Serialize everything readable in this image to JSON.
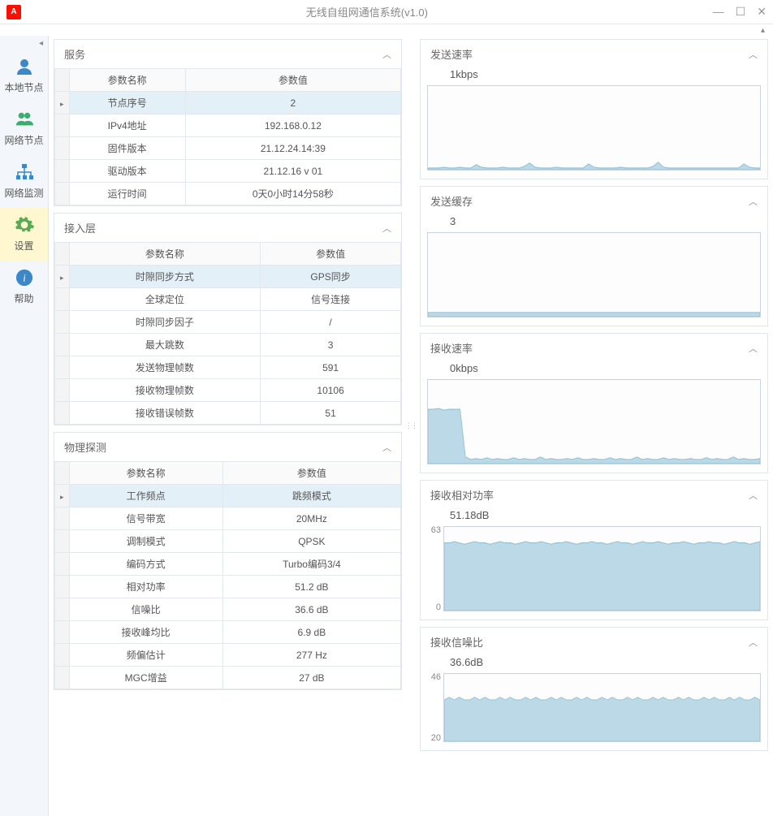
{
  "window": {
    "title": "无线自组网通信系统(v1.0)",
    "logo_text": "A"
  },
  "sidebar": {
    "items": [
      {
        "label": "本地节点"
      },
      {
        "label": "网络节点"
      },
      {
        "label": "网络监测"
      },
      {
        "label": "设置"
      },
      {
        "label": "帮助"
      }
    ]
  },
  "tables": {
    "header_param": "参数名称",
    "header_value": "参数值",
    "service": {
      "title": "服务",
      "rows": [
        {
          "k": "节点序号",
          "v": "2",
          "hl": true
        },
        {
          "k": "IPv4地址",
          "v": "192.168.0.12"
        },
        {
          "k": "固件版本",
          "v": "21.12.24.14:39"
        },
        {
          "k": "驱动版本",
          "v": "21.12.16 v 01"
        },
        {
          "k": "运行时间",
          "v": "0天0小时14分58秒"
        }
      ]
    },
    "access": {
      "title": "接入层",
      "rows": [
        {
          "k": "时隙同步方式",
          "v": "GPS同步",
          "hl": true
        },
        {
          "k": "全球定位",
          "v": "信号连接"
        },
        {
          "k": "时隙同步因子",
          "v": "/"
        },
        {
          "k": "最大跳数",
          "v": "3"
        },
        {
          "k": "发送物理帧数",
          "v": "591"
        },
        {
          "k": "接收物理帧数",
          "v": "10106"
        },
        {
          "k": "接收错误帧数",
          "v": "51"
        }
      ]
    },
    "phys": {
      "title": "物理探测",
      "rows": [
        {
          "k": "工作频点",
          "v": "跳频模式",
          "hl": true
        },
        {
          "k": "信号带宽",
          "v": "20MHz"
        },
        {
          "k": "调制模式",
          "v": "QPSK"
        },
        {
          "k": "编码方式",
          "v": "Turbo编码3/4"
        },
        {
          "k": "相对功率",
          "v": "51.2 dB"
        },
        {
          "k": "信噪比",
          "v": "36.6 dB"
        },
        {
          "k": "接收峰均比",
          "v": "6.9 dB"
        },
        {
          "k": "频偏估计",
          "v": "277 Hz"
        },
        {
          "k": "MGC增益",
          "v": "27 dB"
        }
      ]
    }
  },
  "charts": {
    "fill": "#bbd9e6",
    "stroke": "#8fc0d6",
    "tx_rate": {
      "title": "发送速率",
      "value": "1kbps",
      "ymax": 100,
      "data": [
        2,
        2,
        2,
        3,
        2,
        2,
        3,
        2,
        2,
        6,
        3,
        2,
        2,
        2,
        3,
        2,
        2,
        2,
        4,
        8,
        3,
        2,
        2,
        2,
        3,
        2,
        2,
        2,
        2,
        2,
        7,
        3,
        2,
        2,
        2,
        2,
        3,
        2,
        2,
        2,
        2,
        2,
        4,
        9,
        3,
        2,
        2,
        2,
        2,
        2,
        2,
        2,
        2,
        2,
        2,
        2,
        2,
        2,
        2,
        7,
        3,
        2,
        2
      ]
    },
    "tx_buf": {
      "title": "发送缓存",
      "value": "3",
      "ymax": 100,
      "data": [
        5,
        5,
        5,
        5,
        5,
        5,
        5,
        5,
        5,
        5,
        5,
        5,
        5,
        5,
        5,
        5,
        5,
        5,
        5,
        5,
        5,
        5,
        5,
        5,
        5,
        5,
        5,
        5,
        5,
        5,
        5,
        5,
        5,
        5,
        5,
        5,
        5,
        5,
        5,
        5,
        5,
        5,
        5,
        5,
        5,
        5,
        5,
        5,
        5,
        5,
        5,
        5,
        5,
        5,
        5,
        5,
        5,
        5,
        5,
        5,
        5,
        5,
        5
      ]
    },
    "rx_rate": {
      "title": "接收速率",
      "value": "0kbps",
      "ymax": 100,
      "data": [
        65,
        65,
        66,
        64,
        65,
        65,
        65,
        8,
        5,
        6,
        5,
        7,
        5,
        6,
        5,
        5,
        7,
        5,
        6,
        5,
        5,
        8,
        5,
        6,
        5,
        5,
        6,
        5,
        7,
        5,
        5,
        6,
        5,
        5,
        7,
        5,
        6,
        5,
        5,
        8,
        5,
        6,
        5,
        5,
        7,
        5,
        6,
        5,
        5,
        6,
        5,
        5,
        7,
        5,
        6,
        5,
        5,
        8,
        5,
        6,
        5,
        5,
        6
      ]
    },
    "rx_pwr": {
      "title": "接收相对功率",
      "value": "51.18dB",
      "ymax": 63,
      "ymin": 0,
      "show_labels": true,
      "data": [
        51,
        51,
        52,
        51,
        50,
        51,
        52,
        51,
        51,
        50,
        51,
        52,
        51,
        51,
        50,
        51,
        52,
        51,
        51,
        52,
        51,
        50,
        51,
        51,
        52,
        51,
        50,
        51,
        51,
        52,
        51,
        51,
        50,
        51,
        52,
        51,
        51,
        50,
        51,
        52,
        51,
        51,
        52,
        51,
        50,
        51,
        51,
        52,
        51,
        50,
        51,
        51,
        52,
        51,
        51,
        50,
        51,
        52,
        51,
        51,
        50,
        51,
        52
      ]
    },
    "rx_snr": {
      "title": "接收信噪比",
      "value": "36.6dB",
      "ymax": 46,
      "ymin": 20,
      "show_labels": true,
      "ylabels": [
        "46",
        "20"
      ],
      "height": 85,
      "data": [
        36,
        37,
        36,
        37,
        36,
        36,
        37,
        36,
        37,
        36,
        36,
        37,
        36,
        37,
        36,
        36,
        37,
        36,
        37,
        36,
        36,
        37,
        36,
        37,
        36,
        36,
        37,
        36,
        37,
        36,
        36,
        37,
        36,
        37,
        36,
        36,
        37,
        36,
        37,
        36,
        36,
        37,
        36,
        37,
        36,
        36,
        37,
        36,
        37,
        36,
        36,
        37,
        36,
        37,
        36,
        36,
        37,
        36,
        37,
        36,
        36,
        37,
        36
      ]
    }
  }
}
